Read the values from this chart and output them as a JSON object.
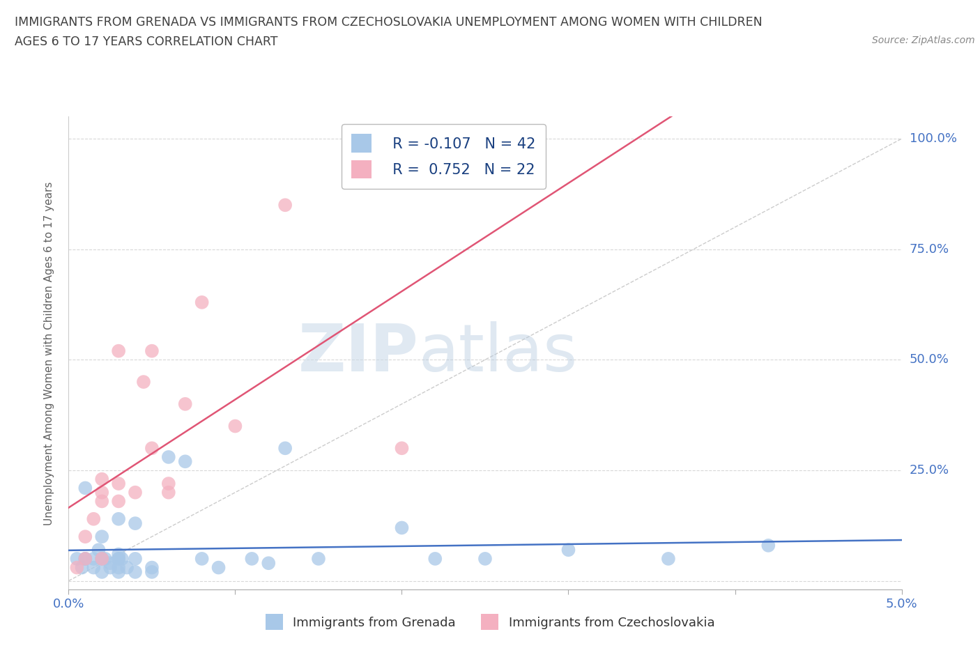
{
  "title_line1": "IMMIGRANTS FROM GRENADA VS IMMIGRANTS FROM CZECHOSLOVAKIA UNEMPLOYMENT AMONG WOMEN WITH CHILDREN",
  "title_line2": "AGES 6 TO 17 YEARS CORRELATION CHART",
  "source_text": "Source: ZipAtlas.com",
  "ylabel": "Unemployment Among Women with Children Ages 6 to 17 years",
  "xlim": [
    0.0,
    0.05
  ],
  "ylim": [
    -0.02,
    1.05
  ],
  "xticks": [
    0.0,
    0.01,
    0.02,
    0.03,
    0.04,
    0.05
  ],
  "xtick_labels": [
    "0.0%",
    "",
    "",
    "",
    "",
    "5.0%"
  ],
  "yticks": [
    0.0,
    0.25,
    0.5,
    0.75,
    1.0
  ],
  "ytick_labels_right": [
    "",
    "25.0%",
    "50.0%",
    "75.0%",
    "100.0%"
  ],
  "legend_label1": "Immigrants from Grenada",
  "legend_label2": "Immigrants from Czechoslovakia",
  "r1": "-0.107",
  "n1": "42",
  "r2": "0.752",
  "n2": "22",
  "color1": "#a8c8e8",
  "color2": "#f4b0c0",
  "line1_color": "#4472c4",
  "line2_color": "#e05575",
  "ref_line_color": "#cccccc",
  "background_color": "#ffffff",
  "grid_color": "#d8d8d8",
  "title_color": "#404040",
  "axis_label_color": "#606060",
  "tick_label_color": "#4472c4",
  "watermark_zip": "ZIP",
  "watermark_atlas": "atlas",
  "grenada_x": [
    0.0005,
    0.0008,
    0.001,
    0.001,
    0.001,
    0.0015,
    0.0015,
    0.0018,
    0.002,
    0.002,
    0.002,
    0.002,
    0.0022,
    0.0025,
    0.0025,
    0.003,
    0.003,
    0.003,
    0.003,
    0.003,
    0.003,
    0.0032,
    0.0035,
    0.004,
    0.004,
    0.004,
    0.005,
    0.005,
    0.006,
    0.007,
    0.008,
    0.009,
    0.011,
    0.012,
    0.013,
    0.015,
    0.02,
    0.022,
    0.025,
    0.03,
    0.036,
    0.042
  ],
  "grenada_y": [
    0.05,
    0.03,
    0.05,
    0.05,
    0.21,
    0.03,
    0.05,
    0.07,
    0.02,
    0.05,
    0.05,
    0.1,
    0.05,
    0.03,
    0.04,
    0.02,
    0.03,
    0.05,
    0.05,
    0.06,
    0.14,
    0.05,
    0.03,
    0.02,
    0.05,
    0.13,
    0.02,
    0.03,
    0.28,
    0.27,
    0.05,
    0.03,
    0.05,
    0.04,
    0.3,
    0.05,
    0.12,
    0.05,
    0.05,
    0.07,
    0.05,
    0.08
  ],
  "czech_x": [
    0.0005,
    0.001,
    0.001,
    0.0015,
    0.002,
    0.002,
    0.002,
    0.002,
    0.003,
    0.003,
    0.003,
    0.004,
    0.0045,
    0.005,
    0.005,
    0.006,
    0.006,
    0.007,
    0.008,
    0.01,
    0.013,
    0.02
  ],
  "czech_y": [
    0.03,
    0.05,
    0.1,
    0.14,
    0.05,
    0.18,
    0.2,
    0.23,
    0.18,
    0.22,
    0.52,
    0.2,
    0.45,
    0.3,
    0.52,
    0.2,
    0.22,
    0.4,
    0.63,
    0.35,
    0.85,
    0.3
  ]
}
